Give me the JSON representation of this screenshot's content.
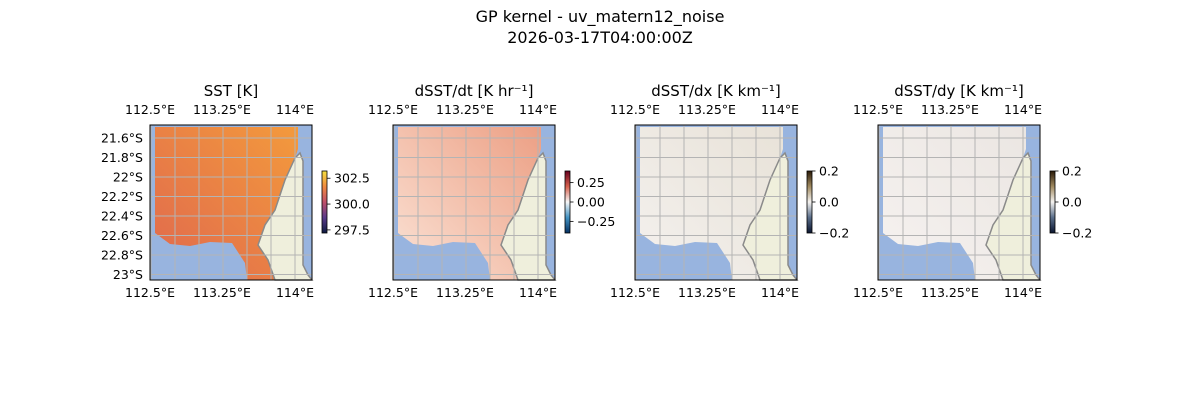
{
  "figure": {
    "title_line1": "GP kernel - uv_matern12_noise",
    "title_line2": "2026-03-17T04:00:00Z"
  },
  "colors": {
    "nodata": "#98b4df",
    "land": "#efefdc",
    "coast": "#8a8a8a",
    "grid": "#b4b4b4"
  },
  "chart_data": [
    {
      "type": "heatmap",
      "title": "SST [K]",
      "lon_ticks": [
        "112.5°E",
        "113.25°E",
        "114°E"
      ],
      "lat_ticks": [
        "21.6°S",
        "21.8°S",
        "22°S",
        "22.2°S",
        "22.4°S",
        "22.6°S",
        "22.8°S",
        "23°S"
      ],
      "show_lat_labels": true,
      "colorbar": {
        "range": [
          297.2,
          303.2
        ],
        "ticks": [
          302.5,
          300.0,
          297.5
        ],
        "tick_labels": [
          "302.5",
          "300.0",
          "297.5"
        ],
        "colormap": [
          "#0d1a40",
          "#5a3a8a",
          "#c0506a",
          "#f08a40",
          "#f5e040"
        ]
      },
      "field_colors": [
        "#e0684e",
        "#f39a3c"
      ]
    },
    {
      "type": "heatmap",
      "title": "dSST/dt [K hr⁻¹]",
      "lon_ticks": [
        "112.5°E",
        "113.25°E",
        "114°E"
      ],
      "show_lat_labels": false,
      "colorbar": {
        "range": [
          -0.4,
          0.4
        ],
        "ticks": [
          0.25,
          0.0,
          -0.25
        ],
        "tick_labels": [
          "0.25",
          "0.00",
          "−0.25"
        ],
        "colormap": [
          "#053061",
          "#4393c3",
          "#f7f7f7",
          "#d6604d",
          "#67001f"
        ]
      },
      "field_colors": [
        "#fbe3d6",
        "#ec9f84"
      ]
    },
    {
      "type": "heatmap",
      "title": "dSST/dx [K km⁻¹]",
      "lon_ticks": [
        "112.5°E",
        "113.25°E",
        "114°E"
      ],
      "show_lat_labels": false,
      "colorbar": {
        "range": [
          -0.2,
          0.2
        ],
        "ticks": [
          0.2,
          0.0,
          -0.2
        ],
        "tick_labels": [
          "0.2",
          "0.0",
          "−0.2"
        ],
        "colormap": [
          "#0a1530",
          "#5a6e8a",
          "#f5f3f0",
          "#a08a60",
          "#2a1a08"
        ]
      },
      "field_colors": [
        "#f4f1ee",
        "#e8e2d8"
      ]
    },
    {
      "type": "heatmap",
      "title": "dSST/dy [K km⁻¹]",
      "lon_ticks": [
        "112.5°E",
        "113.25°E",
        "114°E"
      ],
      "show_lat_labels": false,
      "colorbar": {
        "range": [
          -0.2,
          0.2
        ],
        "ticks": [
          0.2,
          0.0,
          -0.2
        ],
        "tick_labels": [
          "0.2",
          "0.0",
          "−0.2"
        ],
        "colormap": [
          "#0a1530",
          "#5a6e8a",
          "#f5f3f0",
          "#a08a60",
          "#2a1a08"
        ]
      },
      "field_colors": [
        "#f6f2f0",
        "#ebe6e2"
      ]
    }
  ]
}
